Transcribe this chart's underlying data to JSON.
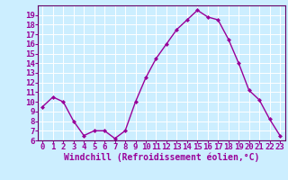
{
  "x": [
    0,
    1,
    2,
    3,
    4,
    5,
    6,
    7,
    8,
    9,
    10,
    11,
    12,
    13,
    14,
    15,
    16,
    17,
    18,
    19,
    20,
    21,
    22,
    23
  ],
  "y": [
    9.5,
    10.5,
    10.0,
    8.0,
    6.5,
    7.0,
    7.0,
    6.2,
    7.0,
    10.0,
    12.5,
    14.5,
    16.0,
    17.5,
    18.5,
    19.5,
    18.8,
    18.5,
    16.5,
    14.0,
    11.2,
    10.2,
    8.2,
    6.5
  ],
  "line_color": "#990099",
  "marker": "D",
  "marker_size": 2,
  "bg_color": "#cceeff",
  "grid_color": "#ffffff",
  "xlabel": "Windchill (Refroidissement éolien,°C)",
  "xlabel_color": "#990099",
  "tick_color": "#990099",
  "ylim": [
    6,
    20
  ],
  "yticks": [
    6,
    7,
    8,
    9,
    10,
    11,
    12,
    13,
    14,
    15,
    16,
    17,
    18,
    19
  ],
  "xticks": [
    0,
    1,
    2,
    3,
    4,
    5,
    6,
    7,
    8,
    9,
    10,
    11,
    12,
    13,
    14,
    15,
    16,
    17,
    18,
    19,
    20,
    21,
    22,
    23
  ],
  "spine_color": "#660066",
  "line_width": 1.0,
  "tick_fontsize": 6.5,
  "xlabel_fontsize": 7.0
}
